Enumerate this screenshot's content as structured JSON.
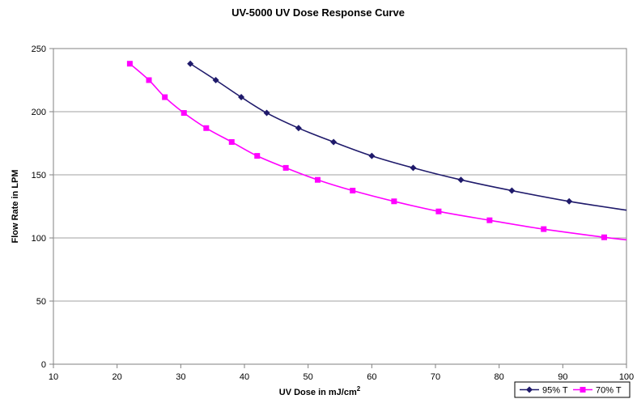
{
  "chart_data": {
    "type": "line",
    "title": "UV-5000 UV Dose Response Curve",
    "xlabel": "UV Dose in mJ/cm",
    "xlabel_sup": "2",
    "ylabel": "Flow Rate in LPM",
    "xlim": [
      10,
      100
    ],
    "ylim": [
      0,
      250
    ],
    "xticks": [
      10,
      20,
      30,
      40,
      50,
      60,
      70,
      80,
      90,
      100
    ],
    "yticks": [
      0,
      50,
      100,
      150,
      200,
      250
    ],
    "grid": "horizontal",
    "legend_position": "bottom-right",
    "series": [
      {
        "name": "95% T",
        "color": "#1f1a6b",
        "marker": "diamond",
        "points": [
          [
            31.5,
            238
          ],
          [
            35.5,
            225
          ],
          [
            39.5,
            211.5
          ],
          [
            43.5,
            199
          ],
          [
            48.5,
            187
          ],
          [
            54,
            176
          ],
          [
            60,
            165
          ],
          [
            66.5,
            155.5
          ],
          [
            74,
            146
          ],
          [
            82,
            137.5
          ],
          [
            91,
            129
          ]
        ],
        "curve_end": [
          100,
          122
        ]
      },
      {
        "name": "70% T",
        "color": "#ff00ff",
        "marker": "square",
        "points": [
          [
            22,
            238
          ],
          [
            25,
            225
          ],
          [
            27.5,
            211.5
          ],
          [
            30.5,
            199
          ],
          [
            34,
            187
          ],
          [
            38,
            176
          ],
          [
            42,
            165
          ],
          [
            46.5,
            155.5
          ],
          [
            51.5,
            146
          ],
          [
            57,
            137.5
          ],
          [
            63.5,
            129
          ],
          [
            70.5,
            121
          ],
          [
            78.5,
            114
          ],
          [
            87,
            107
          ],
          [
            96.5,
            100.5
          ]
        ],
        "curve_end": [
          100,
          98.5
        ]
      }
    ]
  }
}
